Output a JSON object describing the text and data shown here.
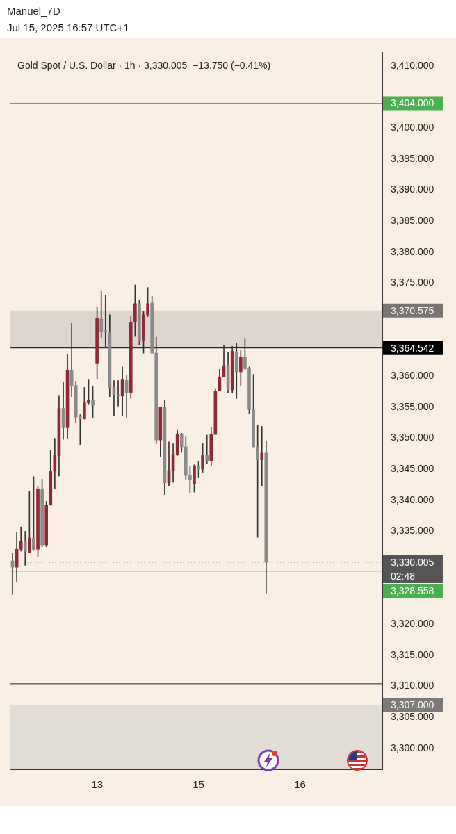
{
  "chart_data": {
    "type": "candlestick",
    "title": "Manuel_7D",
    "subtitle": "Jul 15, 2025 16:57 UTC+1",
    "categories": [
      null,
      null,
      null,
      null,
      null,
      null,
      null,
      null,
      null,
      null,
      null,
      null,
      null,
      null,
      null,
      null,
      null,
      null,
      null,
      null,
      "13",
      null,
      null,
      null,
      null,
      null,
      null,
      null,
      null,
      null,
      null,
      null,
      null,
      null,
      null,
      null,
      null,
      null,
      null,
      null,
      null,
      null,
      null,
      null,
      "15",
      null,
      null,
      null,
      null,
      null,
      null,
      null,
      null,
      null,
      null,
      null,
      null,
      null,
      null,
      null,
      null,
      null,
      null,
      null,
      null,
      null,
      null,
      null,
      "16",
      null,
      null,
      null,
      null,
      null,
      null,
      null,
      null,
      null,
      null,
      null,
      null,
      null,
      null,
      null,
      null,
      null,
      null,
      null
    ],
    "series": [
      {
        "colors": [
          "#8a8a8a",
          "#8e2a35",
          "#8e2a35",
          "#8a8a8a",
          "#8e2a35",
          "#8a8a8a",
          "#8e2a35",
          "#8a8a8a",
          "#8e2a35",
          "#8e2a35",
          "#8e2a35",
          "#8e2a35",
          "#8a8a8a",
          "#8e2a35",
          "#8a8a8a",
          "#8a8a8a",
          "#8a8a8a",
          "#8e2a35",
          "#8e2a35",
          "#8a8a8a",
          "#8e2a35",
          "#8a8a8a",
          "#8a8a8a",
          "#8a8a8a",
          "#8a8a8a",
          "#8a8a8a",
          "#8e2a35",
          "#8a8a8a",
          "#8e2a35",
          "#8e2a35",
          "#8a8a8a",
          "#8e2a35",
          "#8e2a35",
          "#8a8a8a",
          "#8a8a8a",
          "#8e2a35",
          "#8a8a8a",
          "#8e2a35",
          "#8e2a35",
          "#8e2a35",
          "#8a8a8a",
          "#8a8a8a",
          "#8a8a8a",
          "#8e2a35",
          "#8a8a8a",
          "#8e2a35",
          "#8a8a8a",
          "#8e2a35",
          "#8e2a35",
          "#8e2a35",
          "#8e2a35",
          "#8a8a8a",
          "#8e2a35",
          "#8a8a8a",
          "#8e2a35",
          "#8a8a8a",
          "#8a8a8a",
          "#8a8a8a",
          "#8a8a8a",
          "#8e2a35",
          "#8a8a8a",
          null,
          null,
          null,
          null,
          null,
          null,
          null,
          null,
          null,
          null,
          null,
          null,
          null,
          null,
          null,
          null,
          null,
          null,
          null,
          null,
          null,
          null,
          null,
          null,
          null,
          null,
          null
        ],
        "ohlc": [
          [
            3330.2,
            3331.5,
            3324.8,
            3329.2
          ],
          [
            3329.2,
            3334.8,
            3326.9,
            3332.1
          ],
          [
            3332.1,
            3335.7,
            3331.8,
            3333.4
          ],
          [
            3333.4,
            3335.0,
            3329.5,
            3331.8
          ],
          [
            3331.6,
            3341.4,
            3331.6,
            3333.9
          ],
          [
            3333.9,
            3343.8,
            3331.9,
            3332.1
          ],
          [
            3332.1,
            3342.2,
            3330.9,
            3341.8
          ],
          [
            3341.7,
            3343.4,
            3332.5,
            3332.8
          ],
          [
            3332.8,
            3339.8,
            3332.5,
            3339.2
          ],
          [
            3339.2,
            3348.1,
            3339.2,
            3344.7
          ],
          [
            3344.7,
            3350.0,
            3341.8,
            3347.2
          ],
          [
            3347.2,
            3356.8,
            3343.9,
            3354.8
          ],
          [
            3354.8,
            3359.1,
            3349.8,
            3351.7
          ],
          [
            3351.7,
            3363.5,
            3350.0,
            3360.9
          ],
          [
            3361.0,
            3368.5,
            3356.7,
            3358.5
          ],
          [
            3358.5,
            3359.2,
            3352.5,
            3353.4
          ],
          [
            3353.5,
            3353.8,
            3348.9,
            3353.1
          ],
          [
            3353.1,
            3358.2,
            3353.1,
            3355.7
          ],
          [
            3355.7,
            3359.4,
            3355.4,
            3356.1
          ],
          [
            3356.1,
            3358.4,
            3353.3,
            3355.3
          ],
          [
            3362.0,
            3371.1,
            3359.6,
            3369.3
          ],
          [
            3369.2,
            3373.8,
            3366.2,
            3367.2
          ],
          [
            3367.3,
            3373.0,
            3364.6,
            3367.1
          ],
          [
            3367.1,
            3369.9,
            3356.7,
            3358.2
          ],
          [
            3358.2,
            3359.3,
            3353.6,
            3357.0
          ],
          [
            3357.0,
            3359.3,
            3355.2,
            3356.8
          ],
          [
            3356.8,
            3361.5,
            3353.6,
            3359.4
          ],
          [
            3359.3,
            3360.1,
            3353.3,
            3357.3
          ],
          [
            3357.3,
            3369.6,
            3356.4,
            3368.7
          ],
          [
            3368.7,
            3374.7,
            3366.4,
            3371.7
          ],
          [
            3371.7,
            3372.3,
            3365.1,
            3365.7
          ],
          [
            3365.8,
            3370.4,
            3363.7,
            3369.9
          ],
          [
            3369.9,
            3374.3,
            3369.6,
            3371.7
          ],
          [
            3371.8,
            3372.9,
            3363.7,
            3363.7
          ],
          [
            3363.7,
            3366.3,
            3349.1,
            3349.7
          ],
          [
            3349.7,
            3355.0,
            3347.0,
            3355.0
          ],
          [
            3355.0,
            3356.1,
            3340.9,
            3342.8
          ],
          [
            3342.8,
            3349.4,
            3342.3,
            3344.8
          ],
          [
            3344.8,
            3349.1,
            3342.9,
            3347.4
          ],
          [
            3347.4,
            3351.4,
            3347.2,
            3350.7
          ],
          [
            3350.7,
            3350.8,
            3347.7,
            3348.6
          ],
          [
            3348.6,
            3350.2,
            3343.4,
            3344.0
          ],
          [
            3344.0,
            3345.4,
            3341.2,
            3343.3
          ],
          [
            3342.7,
            3345.7,
            3341.3,
            3345.5
          ],
          [
            3345.5,
            3346.2,
            3343.6,
            3345.0
          ],
          [
            3345.0,
            3349.2,
            3344.5,
            3347.2
          ],
          [
            3347.2,
            3350.5,
            3345.9,
            3346.4
          ],
          [
            3346.4,
            3351.8,
            3345.5,
            3350.6
          ],
          [
            3350.6,
            3358.0,
            3350.6,
            3357.6
          ],
          [
            3357.6,
            3361.1,
            3357.6,
            3359.9
          ],
          [
            3359.9,
            3365.0,
            3359.9,
            3361.7
          ],
          [
            3361.8,
            3363.9,
            3357.3,
            3357.8
          ],
          [
            3357.8,
            3364.8,
            3357.3,
            3364.0
          ],
          [
            3363.9,
            3365.3,
            3356.4,
            3360.7
          ],
          [
            3360.7,
            3364.2,
            3358.4,
            3363.1
          ],
          [
            3363.1,
            3366.0,
            3361.0,
            3361.2
          ],
          [
            3361.2,
            3361.5,
            3353.9,
            3354.6
          ],
          [
            3354.6,
            3360.3,
            3348.6,
            3348.6
          ],
          [
            3348.6,
            3352.1,
            3334.0,
            3346.5
          ],
          [
            3346.5,
            3351.9,
            3342.3,
            3347.6
          ],
          [
            3347.6,
            3349.5,
            3325.0,
            3330.005
          ],
          null,
          null,
          null,
          null,
          null,
          null,
          null,
          null,
          null,
          null,
          null,
          null,
          null,
          null,
          null,
          null,
          null,
          null,
          null,
          null,
          null,
          null,
          null,
          null,
          null,
          null,
          null
        ]
      }
    ],
    "ylim": [
      3296.6,
      3412.2
    ],
    "yticks": [
      {
        "value": 3300,
        "label": "3,300.000"
      },
      {
        "value": 3305,
        "label": "3,305.000"
      },
      {
        "value": 3310,
        "label": "3,310.000"
      },
      {
        "value": 3315,
        "label": "3,315.000"
      },
      {
        "value": 3320,
        "label": "3,320.000"
      },
      {
        "value": 3335,
        "label": "3,335.000"
      },
      {
        "value": 3340,
        "label": "3,340.000"
      },
      {
        "value": 3345,
        "label": "3,345.000"
      },
      {
        "value": 3350,
        "label": "3,350.000"
      },
      {
        "value": 3355,
        "label": "3,355.000"
      },
      {
        "value": 3360,
        "label": "3,360.000"
      },
      {
        "value": 3375,
        "label": "3,375.000"
      },
      {
        "value": 3380,
        "label": "3,380.000"
      },
      {
        "value": 3385,
        "label": "3,385.000"
      },
      {
        "value": 3390,
        "label": "3,390.000"
      },
      {
        "value": 3395,
        "label": "3,395.000"
      },
      {
        "value": 3400,
        "label": "3,400.000"
      },
      {
        "value": 3410,
        "label": "3,410.000"
      }
    ],
    "ref_lines": [
      {
        "axis": "y",
        "value": 3404,
        "label": "3,404.000",
        "color": "#4caf50",
        "line_style": "solid"
      },
      {
        "axis": "y",
        "value": 3310.4,
        "label": null,
        "line_style": "solid"
      },
      {
        "axis": "y",
        "value": 3364.542,
        "label": "3,364.542",
        "color": "#000000",
        "line_style": "solid"
      },
      {
        "axis": "y",
        "value": 3330.005,
        "label": "3,330.005\n02:48",
        "color": "#555555",
        "line_style": "dotted"
      },
      {
        "axis": "y",
        "value": 3328.558,
        "label": "3,328.558",
        "color": "#4caf50",
        "line_style": "solid"
      }
    ],
    "bands": [
      {
        "axis": "y",
        "from": 3364.542,
        "to": 3370.575,
        "label": "3,370.575",
        "color": "#ddd5ce"
      },
      {
        "axis": "y",
        "from": 3296.6,
        "to": 3307,
        "label": "3,307.000",
        "color": "#e2dcd6"
      }
    ],
    "annotations": [
      "Gold Spot / U.S. Dollar · 1h · 3,330.005  −13.750 (−0.41%)"
    ],
    "grid": false,
    "legend": false
  }
}
